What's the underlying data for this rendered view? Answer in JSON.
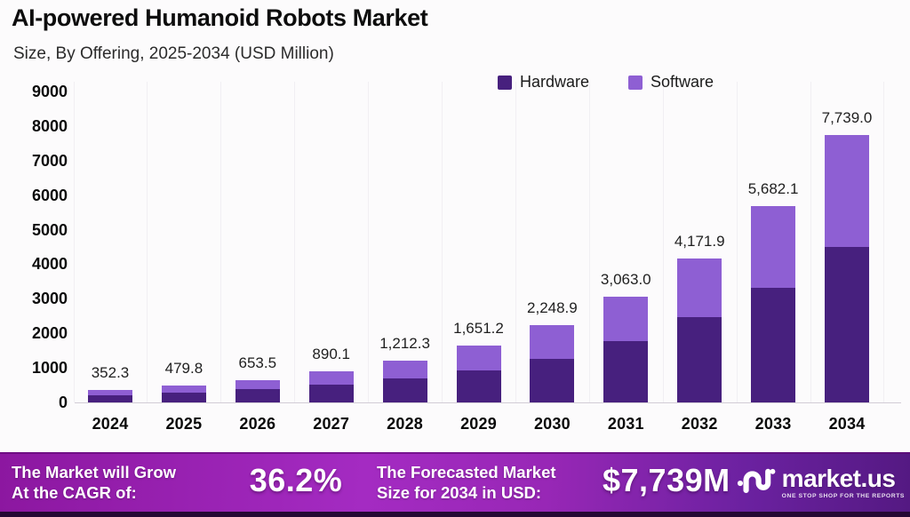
{
  "header": {
    "title": "AI-powered Humanoid Robots Market",
    "subtitle": "Size, By Offering, 2025-2034 (USD Million)"
  },
  "legend": [
    {
      "label": "Hardware",
      "color": "#47207E"
    },
    {
      "label": "Software",
      "color": "#8E5FD3"
    }
  ],
  "chart_data": {
    "type": "bar",
    "stacked": true,
    "title": "AI-powered Humanoid Robots Market",
    "subtitle": "Size, By Offering, 2025-2034 (USD Million)",
    "unit": "USD Million",
    "categories": [
      "2024",
      "2025",
      "2026",
      "2027",
      "2028",
      "2029",
      "2030",
      "2031",
      "2032",
      "2033",
      "2034"
    ],
    "series": [
      {
        "name": "Hardware",
        "color": "#47207E",
        "values": [
          204,
          278,
          380,
          520,
          700,
          930,
          1265,
          1776,
          2477,
          3310,
          4500
        ]
      },
      {
        "name": "Software",
        "color": "#8E5FD3",
        "values": [
          148.3,
          201.8,
          273.5,
          370.1,
          512.3,
          721.2,
          983.9,
          1287.0,
          1694.9,
          2372.1,
          3239.0
        ]
      }
    ],
    "totals": [
      352.3,
      479.8,
      653.5,
      890.1,
      1212.3,
      1651.2,
      2248.9,
      3063.0,
      4171.9,
      5682.1,
      7739.0
    ],
    "total_labels": [
      "352.3",
      "479.8",
      "653.5",
      "890.1",
      "1,212.3",
      "1,651.2",
      "2,248.9",
      "3,063.0",
      "4,171.9",
      "5,682.1",
      "7,739.0"
    ],
    "ylim": [
      0,
      9000
    ],
    "ytick_step": 1000,
    "yticks": [
      "9000",
      "8000",
      "7000",
      "6000",
      "5000",
      "4000",
      "3000",
      "2000",
      "1000",
      "0"
    ],
    "grid": "faint vertical category separators, no horizontal gridlines",
    "legend_position": "top-right"
  },
  "footer": {
    "cagr_label": [
      "The Market will Grow",
      "At the CAGR of:"
    ],
    "cagr_value": "36.2%",
    "forecast_label": [
      "The Forecasted Market",
      "Size for 2034 in USD:"
    ],
    "forecast_value": "$7,739M",
    "brand": "market.us",
    "brand_tagline": "ONE STOP SHOP FOR THE REPORTS",
    "gradient": [
      "#8C17A0",
      "#A42BC2",
      "#541982"
    ],
    "bottom_strip_color": "#250833"
  }
}
